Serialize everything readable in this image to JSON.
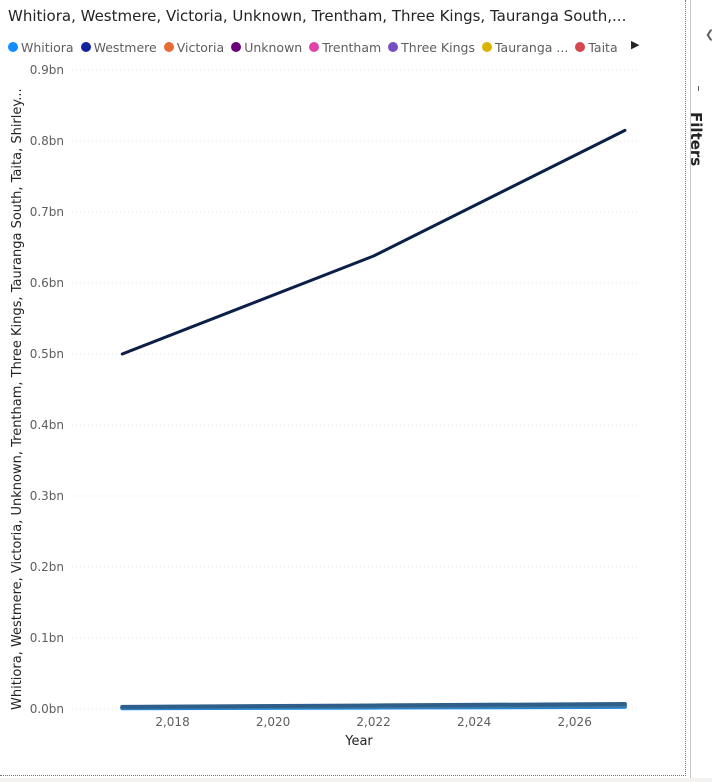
{
  "chart_data": {
    "type": "line",
    "title": "Whitiora, Westmere, Victoria, Unknown, Trentham, Three Kings, Tauranga South,...",
    "xlabel": "Year",
    "ylabel": "Whitiora, Westmere, Victoria, Unknown, Trentham, Three Kings, Tauranga South, Taita, Shirley...",
    "x": [
      2017,
      2022,
      2027
    ],
    "xlim": [
      2016,
      2027.3
    ],
    "ylim": [
      0,
      0.9
    ],
    "y_unit": "bn",
    "x_ticks": [
      2018,
      2020,
      2022,
      2024,
      2026
    ],
    "x_tick_labels": [
      "2,018",
      "2,020",
      "2,022",
      "2,024",
      "2,026"
    ],
    "y_ticks": [
      0,
      0.1,
      0.2,
      0.3,
      0.4,
      0.5,
      0.6,
      0.7,
      0.8,
      0.9
    ],
    "y_tick_labels": [
      "0.0bn",
      "0.1bn",
      "0.2bn",
      "0.3bn",
      "0.4bn",
      "0.5bn",
      "0.6bn",
      "0.7bn",
      "0.8bn",
      "0.9bn"
    ],
    "grid": true,
    "legend_position": "top-left",
    "legend": [
      {
        "label": "Whitiora",
        "color": "#118DFF"
      },
      {
        "label": "Westmere",
        "color": "#12239E"
      },
      {
        "label": "Victoria",
        "color": "#E66C37"
      },
      {
        "label": "Unknown",
        "color": "#6B007B"
      },
      {
        "label": "Trentham",
        "color": "#E044A7"
      },
      {
        "label": "Three Kings",
        "color": "#744EC2"
      },
      {
        "label": "Tauranga ...",
        "color": "#D9B300"
      },
      {
        "label": "Taita",
        "color": "#D64550"
      }
    ],
    "series": [
      {
        "color": "#0B1F47",
        "values": [
          0.5,
          0.638,
          0.815
        ]
      },
      {
        "color": "#2E5F8A",
        "values": [
          0.003,
          0.005,
          0.007
        ]
      },
      {
        "color": "#3E7CA6",
        "values": [
          0.002,
          0.003,
          0.004
        ]
      },
      {
        "color": "#118DFF",
        "values": [
          0.001,
          0.002,
          0.003
        ]
      }
    ]
  },
  "filters": {
    "label": "Filters",
    "chevron": "chevron-left-icon"
  },
  "legend_next_icon": "triangle-right-icon"
}
